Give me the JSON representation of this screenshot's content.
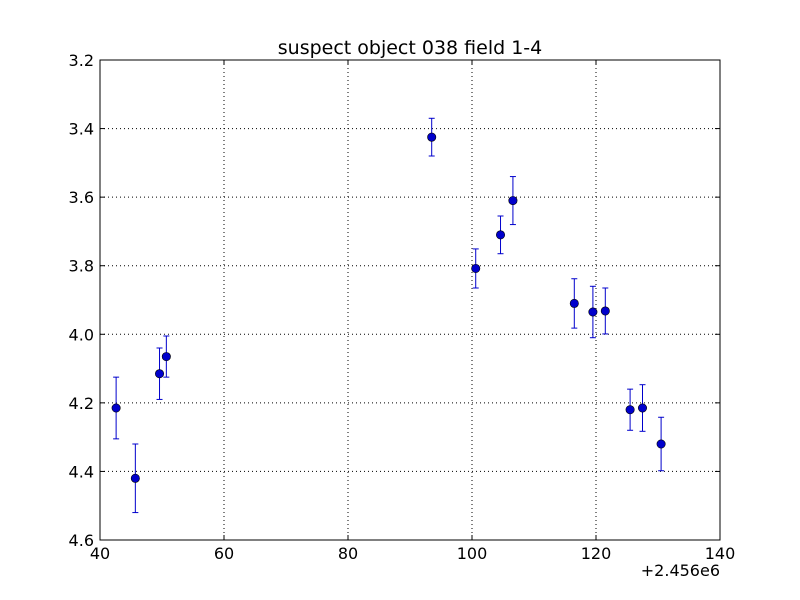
{
  "chart_data": {
    "type": "scatter",
    "title": "suspect object 038 field 1-4",
    "xlabel": "",
    "ylabel": "",
    "x_offset_label": "+2.456e6",
    "xlim": [
      40,
      140
    ],
    "ylim": [
      3.2,
      4.6
    ],
    "y_inverted": true,
    "grid": true,
    "x_ticks": [
      {
        "value": 40,
        "label": "40"
      },
      {
        "value": 60,
        "label": "60"
      },
      {
        "value": 80,
        "label": "80"
      },
      {
        "value": 100,
        "label": "100"
      },
      {
        "value": 120,
        "label": "120"
      },
      {
        "value": 140,
        "label": "140"
      }
    ],
    "y_ticks": [
      {
        "value": 3.2,
        "label": "3.2"
      },
      {
        "value": 3.4,
        "label": "3.4"
      },
      {
        "value": 3.6,
        "label": "3.6"
      },
      {
        "value": 3.8,
        "label": "3.8"
      },
      {
        "value": 4.0,
        "label": "4.0"
      },
      {
        "value": 4.2,
        "label": "4.2"
      },
      {
        "value": 4.4,
        "label": "4.4"
      },
      {
        "value": 4.6,
        "label": "4.6"
      }
    ],
    "series": [
      {
        "color": "#0000cc",
        "marker": "circle",
        "points": [
          {
            "x": 42.6,
            "y": 4.215,
            "yerr": 0.09
          },
          {
            "x": 45.7,
            "y": 4.42,
            "yerr": 0.1
          },
          {
            "x": 49.6,
            "y": 4.115,
            "yerr": 0.075
          },
          {
            "x": 50.7,
            "y": 4.065,
            "yerr": 0.06
          },
          {
            "x": 93.5,
            "y": 3.425,
            "yerr": 0.055
          },
          {
            "x": 100.6,
            "y": 3.808,
            "yerr": 0.057
          },
          {
            "x": 104.6,
            "y": 3.71,
            "yerr": 0.055
          },
          {
            "x": 106.6,
            "y": 3.61,
            "yerr": 0.07
          },
          {
            "x": 116.5,
            "y": 3.91,
            "yerr": 0.072
          },
          {
            "x": 119.5,
            "y": 3.935,
            "yerr": 0.075
          },
          {
            "x": 121.5,
            "y": 3.932,
            "yerr": 0.067
          },
          {
            "x": 125.5,
            "y": 4.22,
            "yerr": 0.06
          },
          {
            "x": 127.5,
            "y": 4.215,
            "yerr": 0.068
          },
          {
            "x": 130.5,
            "y": 4.32,
            "yerr": 0.078
          }
        ]
      }
    ]
  }
}
